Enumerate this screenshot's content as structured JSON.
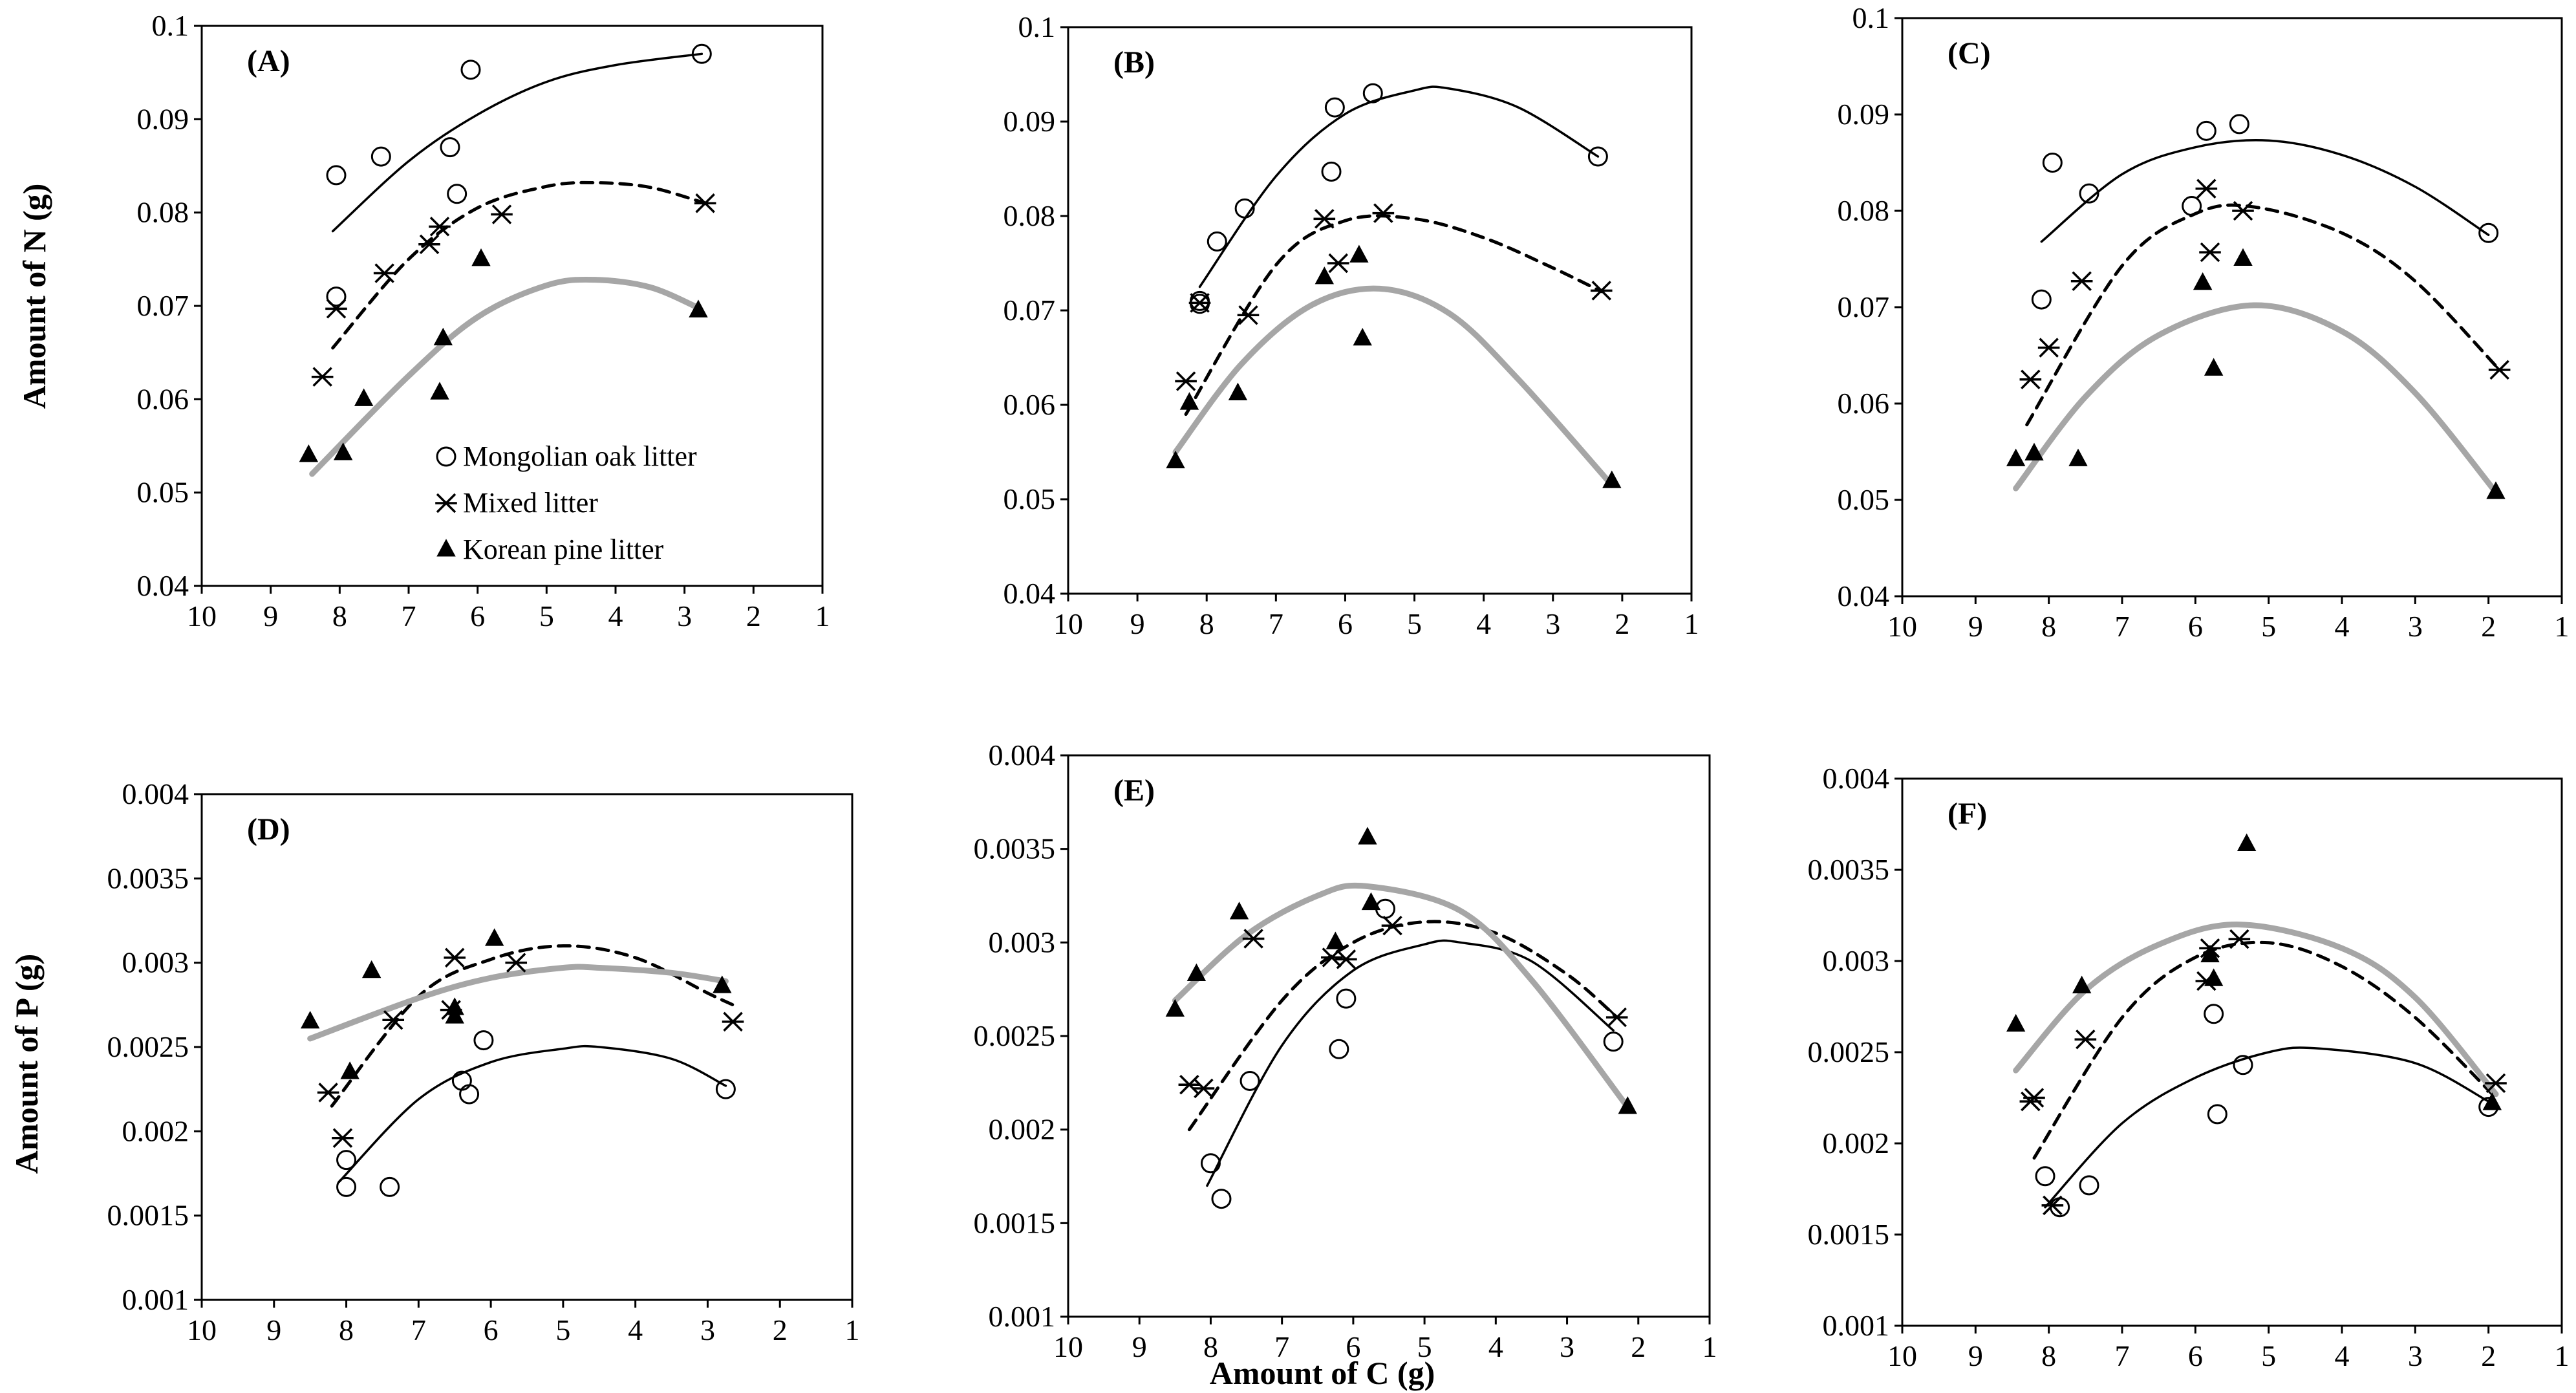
{
  "figure": {
    "y_label_n": "Amount of N (g)",
    "y_label_p": "Amount of P (g)",
    "x_label": "Amount of C (g)"
  },
  "legend": [
    {
      "series": "oak",
      "label": "Mongolian oak litter",
      "marker": "circle-open"
    },
    {
      "series": "mixed",
      "label": "Mixed litter",
      "marker": "asterisk"
    },
    {
      "series": "pine",
      "label": "Korean pine litter",
      "marker": "triangle-filled"
    }
  ],
  "colors": {
    "oak_line": "#000000",
    "mixed_line": "#000000",
    "pine_line": "#a6a6a6",
    "marker": "#000000"
  },
  "chart_data": [
    {
      "type": "scatter",
      "panel": "(A)",
      "xlim": [
        10,
        1
      ],
      "ylim": [
        0.04,
        0.1
      ],
      "xticks": [
        "10",
        "9",
        "8",
        "7",
        "6",
        "5",
        "4",
        "3",
        "2",
        "1"
      ],
      "yticks": [
        "0.04",
        "0.05",
        "0.06",
        "0.07",
        "0.08",
        "0.09",
        "0.1"
      ],
      "series": [
        {
          "name": "Mongolian oak litter",
          "x": [
            8.05,
            7.4,
            6.4,
            6.1,
            6.3,
            8.05,
            2.75
          ],
          "y": [
            0.084,
            0.086,
            0.087,
            0.0953,
            0.082,
            0.071,
            0.097
          ],
          "fit": {
            "x": [
              8.1,
              7.0,
              6.0,
              5.0,
              4.0,
              2.75
            ],
            "y": [
              0.078,
              0.0855,
              0.0905,
              0.094,
              0.0958,
              0.097
            ]
          }
        },
        {
          "name": "Mixed litter",
          "x": [
            8.25,
            8.05,
            7.35,
            6.7,
            6.55,
            5.65,
            2.7
          ],
          "y": [
            0.0624,
            0.0697,
            0.0735,
            0.0766,
            0.0785,
            0.0798,
            0.081
          ],
          "fit": {
            "x": [
              8.1,
              7.0,
              6.0,
              5.0,
              4.3,
              3.5,
              2.7
            ],
            "y": [
              0.0655,
              0.075,
              0.0805,
              0.0828,
              0.0832,
              0.0827,
              0.081
            ]
          }
        },
        {
          "name": "Korean pine litter",
          "x": [
            8.45,
            7.95,
            7.65,
            6.55,
            6.5,
            5.95,
            2.8
          ],
          "y": [
            0.054,
            0.0542,
            0.06,
            0.0607,
            0.0665,
            0.075,
            0.0695
          ],
          "fit": {
            "x": [
              8.4,
              7.0,
              6.0,
              5.0,
              4.3,
              3.5,
              2.8
            ],
            "y": [
              0.052,
              0.0625,
              0.0688,
              0.0722,
              0.0728,
              0.072,
              0.0698
            ]
          }
        }
      ]
    },
    {
      "type": "scatter",
      "panel": "(B)",
      "xlim": [
        10,
        1
      ],
      "ylim": [
        0.04,
        0.1
      ],
      "xticks": [
        "10",
        "9",
        "8",
        "7",
        "6",
        "5",
        "4",
        "3",
        "2",
        "1"
      ],
      "yticks": [
        "0.04",
        "0.05",
        "0.06",
        "0.07",
        "0.08",
        "0.09",
        "0.1"
      ],
      "series": [
        {
          "name": "Mongolian oak litter",
          "x": [
            8.1,
            7.85,
            7.45,
            6.2,
            6.15,
            5.6,
            2.35,
            8.1
          ],
          "y": [
            0.0707,
            0.0773,
            0.0808,
            0.0847,
            0.0915,
            0.093,
            0.0863,
            0.071
          ],
          "fit": {
            "x": [
              8.1,
              7.0,
              6.0,
              5.0,
              4.5,
              3.5,
              2.35
            ],
            "y": [
              0.0725,
              0.0842,
              0.0908,
              0.0933,
              0.0935,
              0.0915,
              0.0863
            ]
          }
        },
        {
          "name": "Mixed litter",
          "x": [
            8.3,
            8.1,
            7.4,
            6.3,
            6.1,
            5.45,
            2.3
          ],
          "y": [
            0.0625,
            0.0708,
            0.0695,
            0.0797,
            0.075,
            0.0803,
            0.0721
          ],
          "fit": {
            "x": [
              8.3,
              7.0,
              6.0,
              5.0,
              4.0,
              3.0,
              2.3
            ],
            "y": [
              0.059,
              0.0748,
              0.0795,
              0.0797,
              0.0777,
              0.0745,
              0.072
            ]
          }
        },
        {
          "name": "Korean pine litter",
          "x": [
            8.45,
            8.25,
            7.55,
            6.3,
            5.8,
            5.75,
            2.15
          ],
          "y": [
            0.054,
            0.0602,
            0.0612,
            0.0735,
            0.0758,
            0.067,
            0.0519
          ],
          "fit": {
            "x": [
              8.45,
              7.5,
              6.5,
              5.5,
              4.5,
              3.5,
              2.15
            ],
            "y": [
              0.055,
              0.0643,
              0.0705,
              0.0723,
              0.0697,
              0.0627,
              0.0515
            ]
          }
        }
      ]
    },
    {
      "type": "scatter",
      "panel": "(C)",
      "xlim": [
        10,
        1
      ],
      "ylim": [
        0.04,
        0.1
      ],
      "xticks": [
        "10",
        "9",
        "8",
        "7",
        "6",
        "5",
        "4",
        "3",
        "2",
        "1"
      ],
      "yticks": [
        "0.04",
        "0.05",
        "0.06",
        "0.07",
        "0.08",
        "0.09",
        "0.1"
      ],
      "series": [
        {
          "name": "Mongolian oak litter",
          "x": [
            7.95,
            7.45,
            5.85,
            5.4,
            6.05,
            8.1,
            2.0
          ],
          "y": [
            0.085,
            0.0818,
            0.0883,
            0.089,
            0.0805,
            0.0708,
            0.0777
          ],
          "fit": {
            "x": [
              8.1,
              7.0,
              6.0,
              5.0,
              4.0,
              3.0,
              2.0
            ],
            "y": [
              0.0768,
              0.0838,
              0.0866,
              0.0873,
              0.0858,
              0.0825,
              0.0775
            ]
          }
        },
        {
          "name": "Mixed litter",
          "x": [
            8.25,
            8.0,
            7.55,
            5.85,
            5.8,
            5.35,
            1.85
          ],
          "y": [
            0.0625,
            0.0658,
            0.0727,
            0.0823,
            0.0757,
            0.08,
            0.0635
          ],
          "fit": {
            "x": [
              8.3,
              7.0,
              6.0,
              5.2,
              4.0,
              3.0,
              1.85
            ],
            "y": [
              0.0578,
              0.0743,
              0.0797,
              0.0804,
              0.0777,
              0.0727,
              0.0635
            ]
          }
        },
        {
          "name": "Korean pine litter",
          "x": [
            8.45,
            8.2,
            7.6,
            5.9,
            5.75,
            5.35,
            1.9
          ],
          "y": [
            0.0542,
            0.0548,
            0.0542,
            0.0725,
            0.0636,
            0.075,
            0.0508
          ],
          "fit": {
            "x": [
              8.45,
              7.5,
              6.5,
              5.2,
              4.0,
              3.0,
              1.9
            ],
            "y": [
              0.0512,
              0.0607,
              0.0671,
              0.0702,
              0.0675,
              0.0611,
              0.0508
            ]
          }
        }
      ]
    },
    {
      "type": "scatter",
      "panel": "(D)",
      "xlim": [
        10,
        1
      ],
      "ylim": [
        0.001,
        0.004
      ],
      "xticks": [
        "10",
        "9",
        "8",
        "7",
        "6",
        "5",
        "4",
        "3",
        "2",
        "1"
      ],
      "yticks": [
        "0.001",
        "0.0015",
        "0.002",
        "0.0025",
        "0.003",
        "0.0035",
        "0.004"
      ],
      "series": [
        {
          "name": "Mongolian oak litter",
          "x": [
            8.0,
            8.0,
            7.4,
            6.4,
            6.3,
            6.1,
            2.75
          ],
          "y": [
            0.00167,
            0.00183,
            0.00167,
            0.0023,
            0.00222,
            0.00254,
            0.00225
          ],
          "fit": {
            "x": [
              8.1,
              7.0,
              6.0,
              5.0,
              4.5,
              3.5,
              2.75
            ],
            "y": [
              0.0017,
              0.00219,
              0.00241,
              0.00249,
              0.0025,
              0.00243,
              0.00227
            ]
          }
        },
        {
          "name": "Mixed litter",
          "x": [
            8.25,
            8.05,
            7.35,
            6.5,
            6.55,
            5.65,
            2.65
          ],
          "y": [
            0.00223,
            0.00196,
            0.00266,
            0.00303,
            0.00272,
            0.003,
            0.00265
          ],
          "fit": {
            "x": [
              8.2,
              7.0,
              6.0,
              5.0,
              4.0,
              3.0,
              2.65
            ],
            "y": [
              0.00215,
              0.0028,
              0.00302,
              0.0031,
              0.00303,
              0.00282,
              0.00275
            ]
          }
        },
        {
          "name": "Korean pine litter",
          "x": [
            8.5,
            7.65,
            7.95,
            6.5,
            6.5,
            5.95,
            2.8
          ],
          "y": [
            0.00265,
            0.00295,
            0.00235,
            0.00268,
            0.00273,
            0.00314,
            0.00286
          ],
          "fit": {
            "x": [
              8.5,
              7.0,
              6.0,
              5.0,
              4.5,
              3.5,
              2.75
            ],
            "y": [
              0.00255,
              0.00279,
              0.00291,
              0.00297,
              0.00297,
              0.00294,
              0.00289
            ]
          }
        }
      ]
    },
    {
      "type": "scatter",
      "panel": "(E)",
      "xlim": [
        10,
        1
      ],
      "ylim": [
        0.001,
        0.004
      ],
      "xticks": [
        "10",
        "9",
        "8",
        "7",
        "6",
        "5",
        "4",
        "3",
        "2",
        "1"
      ],
      "yticks": [
        "0.001",
        "0.0015",
        "0.002",
        "0.0025",
        "0.003",
        "0.0035",
        "0.004"
      ],
      "series": [
        {
          "name": "Mongolian oak litter",
          "x": [
            8.0,
            7.85,
            7.45,
            6.2,
            6.1,
            5.55,
            2.35
          ],
          "y": [
            0.00182,
            0.00163,
            0.00226,
            0.00243,
            0.0027,
            0.00318,
            0.00247
          ],
          "fit": {
            "x": [
              8.05,
              7.0,
              6.0,
              5.0,
              4.5,
              3.5,
              2.35
            ],
            "y": [
              0.0017,
              0.00245,
              0.00285,
              0.00299,
              0.003,
              0.0029,
              0.00253
            ]
          }
        },
        {
          "name": "Mixed litter",
          "x": [
            8.3,
            8.1,
            7.4,
            6.3,
            6.1,
            5.45,
            2.3
          ],
          "y": [
            0.00224,
            0.00222,
            0.00302,
            0.00292,
            0.00291,
            0.00309,
            0.0026
          ],
          "fit": {
            "x": [
              8.3,
              7.0,
              6.0,
              5.0,
              4.0,
              3.0,
              2.3
            ],
            "y": [
              0.002,
              0.00269,
              0.003,
              0.00311,
              0.00305,
              0.00283,
              0.0026
            ]
          }
        },
        {
          "name": "Korean pine litter",
          "x": [
            8.5,
            8.2,
            7.6,
            6.25,
            5.8,
            5.75,
            2.15
          ],
          "y": [
            0.00264,
            0.00283,
            0.00316,
            0.003,
            0.00356,
            0.00321,
            0.00212
          ],
          "fit": {
            "x": [
              8.5,
              7.5,
              6.5,
              5.8,
              4.5,
              3.5,
              2.15
            ],
            "y": [
              0.00269,
              0.00304,
              0.00325,
              0.0033,
              0.00317,
              0.0028,
              0.00212
            ]
          }
        }
      ]
    },
    {
      "type": "scatter",
      "panel": "(F)",
      "xlim": [
        10,
        1
      ],
      "ylim": [
        0.001,
        0.004
      ],
      "xticks": [
        "10",
        "9",
        "8",
        "7",
        "6",
        "5",
        "4",
        "3",
        "2",
        "1"
      ],
      "yticks": [
        "0.001",
        "0.0015",
        "0.002",
        "0.0025",
        "0.003",
        "0.0035",
        "0.004"
      ],
      "series": [
        {
          "name": "Mongolian oak litter",
          "x": [
            8.05,
            7.85,
            7.45,
            5.75,
            5.7,
            5.35,
            2.0
          ],
          "y": [
            0.00182,
            0.00165,
            0.00177,
            0.00271,
            0.00216,
            0.00243,
            0.0022
          ],
          "fit": {
            "x": [
              8.05,
              7.0,
              6.0,
              5.0,
              4.3,
              3.0,
              2.0
            ],
            "y": [
              0.00165,
              0.00211,
              0.00236,
              0.0025,
              0.00252,
              0.00244,
              0.00223
            ]
          }
        },
        {
          "name": "Mixed litter",
          "x": [
            8.25,
            8.2,
            7.95,
            7.5,
            5.85,
            5.8,
            5.4,
            1.9
          ],
          "y": [
            0.00223,
            0.00225,
            0.00166,
            0.00257,
            0.00289,
            0.00307,
            0.00312,
            0.00233
          ],
          "fit": {
            "x": [
              8.2,
              7.0,
              6.0,
              5.0,
              4.0,
              3.0,
              1.9
            ],
            "y": [
              0.00192,
              0.00269,
              0.00302,
              0.0031,
              0.00297,
              0.00269,
              0.00225
            ]
          }
        },
        {
          "name": "Korean pine litter",
          "x": [
            8.45,
            7.55,
            5.8,
            5.75,
            5.3,
            1.95
          ],
          "y": [
            0.00265,
            0.00286,
            0.00303,
            0.0029,
            0.00364,
            0.00222
          ],
          "fit": {
            "x": [
              8.45,
              7.5,
              6.5,
              5.4,
              4.0,
              3.0,
              1.9
            ],
            "y": [
              0.0024,
              0.00284,
              0.00309,
              0.0032,
              0.00307,
              0.0028,
              0.00227
            ]
          }
        }
      ]
    }
  ]
}
